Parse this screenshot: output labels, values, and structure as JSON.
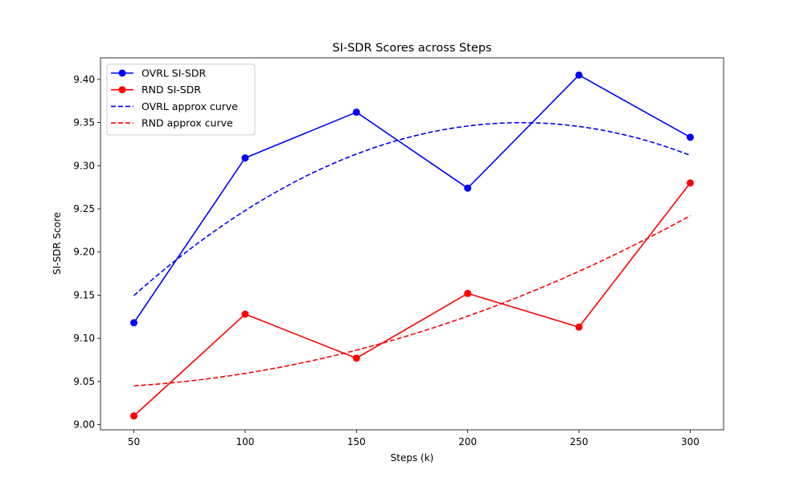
{
  "chart_data": {
    "type": "line",
    "title": "SI-SDR Scores across Steps",
    "xlabel": "Steps (k)",
    "ylabel": "SI-SDR Score",
    "x": [
      50,
      100,
      150,
      200,
      250,
      300
    ],
    "xticks": [
      "50",
      "100",
      "150",
      "200",
      "250",
      "300"
    ],
    "yticks": [
      "9.00",
      "9.05",
      "9.10",
      "9.15",
      "9.20",
      "9.25",
      "9.30",
      "9.35",
      "9.40"
    ],
    "xlim": [
      35,
      315
    ],
    "ylim": [
      8.994,
      9.425
    ],
    "grid": false,
    "legend_position": "upper-left",
    "series": [
      {
        "name": "OVRL SI-SDR",
        "style": "solid-marker",
        "color": "#0000ff",
        "values": [
          9.118,
          9.309,
          9.362,
          9.274,
          9.405,
          9.333
        ]
      },
      {
        "name": "RND SI-SDR",
        "style": "solid-marker",
        "color": "#ff0000",
        "values": [
          9.01,
          9.128,
          9.077,
          9.152,
          9.113,
          9.28
        ]
      },
      {
        "name": "OVRL approx curve",
        "style": "dashed",
        "color": "#0000ff",
        "quadratic": [
          -6.6e-06,
          0.00296,
          9.018
        ]
      },
      {
        "name": "RND approx curve",
        "style": "dashed",
        "color": "#ff0000",
        "quadratic": [
          2.5e-06,
          -8.65e-05,
          9.043
        ]
      }
    ]
  }
}
